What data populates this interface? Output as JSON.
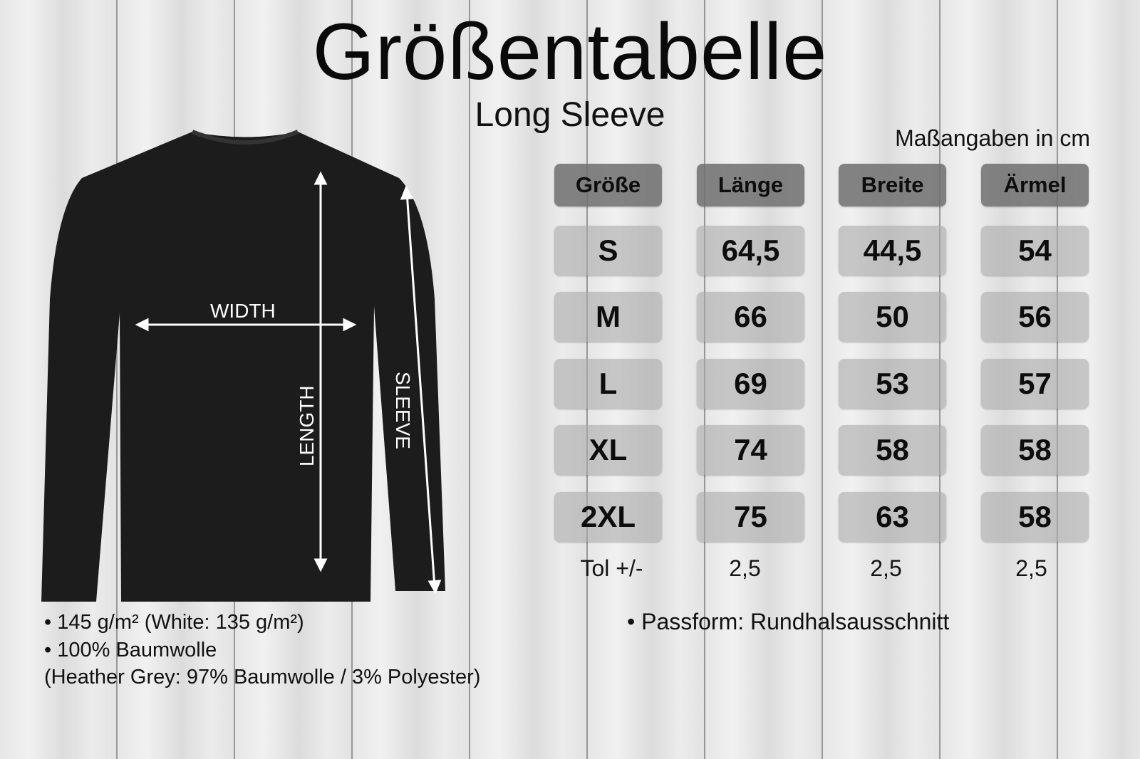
{
  "title": "Größentabelle",
  "subtitle": "Long Sleeve",
  "units_note": "Maßangaben in cm",
  "table": {
    "headers": [
      "Größe",
      "Länge",
      "Breite",
      "Ärmel"
    ],
    "rows": [
      [
        "S",
        "64,5",
        "44,5",
        "54"
      ],
      [
        "M",
        "66",
        "50",
        "56"
      ],
      [
        "L",
        "69",
        "53",
        "57"
      ],
      [
        "XL",
        "74",
        "58",
        "58"
      ],
      [
        "2XL",
        "75",
        "63",
        "58"
      ]
    ],
    "tolerance": [
      "Tol +/-",
      "2,5",
      "2,5",
      "2,5"
    ]
  },
  "diagram": {
    "width_label": "WIDTH",
    "length_label": "LENGTH",
    "sleeve_label": "SLEEVE"
  },
  "notes_left": [
    "• 145 g/m² (White: 135 g/m²)",
    "• 100% Baumwolle",
    "(Heather Grey: 97% Baumwolle / 3% Polyester)"
  ],
  "notes_right": [
    "•  Passform: Rundhalsausschnitt"
  ],
  "colors": {
    "header_cell": "#6e6e6e",
    "value_cell": "#aaaaaa",
    "shirt": "#1c1c1c"
  }
}
